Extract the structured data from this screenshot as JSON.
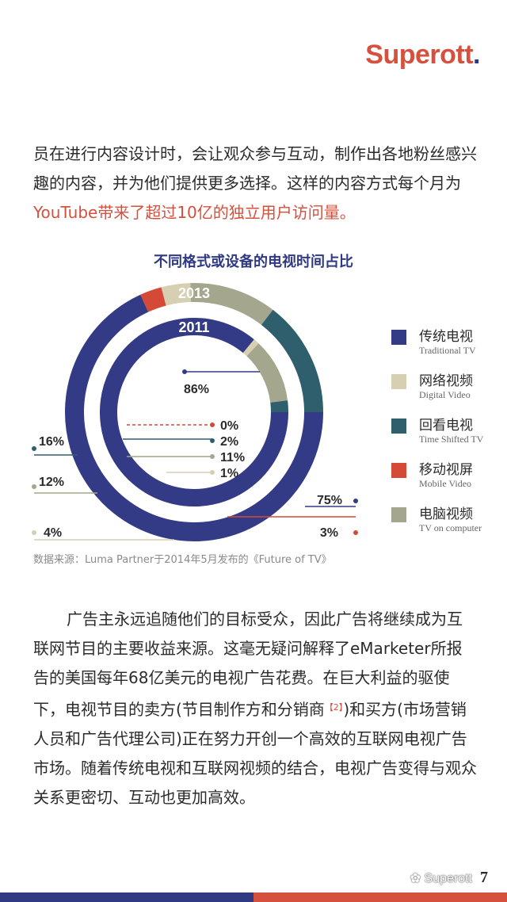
{
  "brand": {
    "logo_main": "Superott",
    "logo_dot": "."
  },
  "intro": {
    "text_before": "员在进行内容设计时，会让观众参与互动，制作出各地粉丝感兴趣的内容，并为他们提供更多选择。这样的内容方式每个月为",
    "highlight": "YouTube带来了超过10亿的独立用户访问量。"
  },
  "chart_title": "不同格式或设备的电视时间占比",
  "chart_data": {
    "type": "donut",
    "title": "不同格式或设备的电视时间占比",
    "rings": [
      {
        "label": "2013",
        "slices": [
          {
            "name": "传统电视",
            "value": 75,
            "label": "75%"
          },
          {
            "name": "移动视屏",
            "value": 3,
            "label": "3%"
          },
          {
            "name": "网络视频",
            "value": 4,
            "label": "4%"
          },
          {
            "name": "电脑视频",
            "value": 12,
            "label": "12%"
          },
          {
            "name": "回看电视",
            "value": 16,
            "label": "16%"
          }
        ]
      },
      {
        "label": "2011",
        "slices": [
          {
            "name": "传统电视",
            "value": 86,
            "label": "86%"
          },
          {
            "name": "网络视频",
            "value": 1,
            "label": "1%"
          },
          {
            "name": "电脑视频",
            "value": 11,
            "label": "11%"
          },
          {
            "name": "回看电视",
            "value": 2,
            "label": "2%"
          },
          {
            "name": "移动视屏",
            "value": 0,
            "label": "0%"
          }
        ]
      }
    ],
    "colors": {
      "传统电视": "#343b86",
      "网络视频": "#d6cfb2",
      "回看电视": "#2f5f6c",
      "移动视屏": "#d44a36",
      "电脑视频": "#a4a68d"
    },
    "legend_position": "right"
  },
  "legend": [
    {
      "zh": "传统电视",
      "en": "Traditional TV",
      "color": "#343b86"
    },
    {
      "zh": "网络视频",
      "en": "Digital Video",
      "color": "#d6cfb2"
    },
    {
      "zh": "回看电视",
      "en": "Time Shifted TV",
      "color": "#2f5f6c"
    },
    {
      "zh": "移动视屏",
      "en": "Mobile Video",
      "color": "#d44a36"
    },
    {
      "zh": "电脑视频",
      "en": "TV on computer",
      "color": "#a4a68d"
    }
  ],
  "source_note": "数据来源：Luma Partner于2014年5月发布的《Future of TV》",
  "body": {
    "text_a": "广告主永远追随他们的目标受众，因此广告将继续成为互联网节目的主要收益来源。这毫无疑问解释了eMarketer所报告的美国每年68亿美元的电视广告花费。在巨大利益的驱使下，电视节目的卖方(节目制作方和分销商",
    "footnote": "【2】",
    "text_b": ")和买方(市场营销人员和广告代理公司)正在努力开创一个高效的互联网电视广告市场。随着传统电视和互联网视频的结合，电视广告变得与观众关系更密切、互动也更加高效。"
  },
  "page_number": "7",
  "watermark": "Superott"
}
